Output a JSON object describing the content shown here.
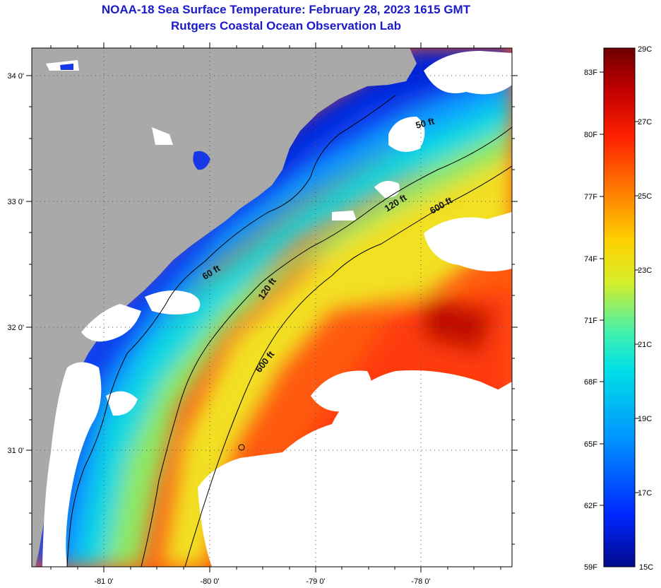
{
  "header": {
    "title_line1": "NOAA-18 Sea Surface Temperature:  February 28, 2023 1615 GMT",
    "title_line2": "Rutgers Coastal Ocean Observation Lab"
  },
  "map": {
    "lat_labels": [
      "34 0'",
      "33 0'",
      "32 0'",
      "31 0'"
    ],
    "lon_labels": [
      "-81 0'",
      "-80 0'",
      "-79 0'",
      "-78 0'"
    ],
    "contour_labels": [
      "50 ft",
      "120 ft",
      "600 ft",
      "60 ft",
      "120 ft",
      "600 ft"
    ],
    "colors": {
      "land": "#a9a9a9",
      "cloud": "#ffffff",
      "contour": "#000000"
    }
  },
  "colorbar": {
    "fahrenheit_labels": [
      "83F",
      "80F",
      "77F",
      "74F",
      "71F",
      "68F",
      "65F",
      "62F",
      "59F"
    ],
    "celsius_labels": [
      "29C",
      "27C",
      "25C",
      "23C",
      "21C",
      "19C",
      "17C",
      "15C"
    ],
    "min_c": 15,
    "max_c": 29,
    "color_stops": [
      "#000a8c",
      "#0026ff",
      "#0096ff",
      "#00e0e6",
      "#40f0b0",
      "#d8ee28",
      "#ffd000",
      "#ff8000",
      "#ff2000",
      "#c00000",
      "#700000"
    ]
  }
}
